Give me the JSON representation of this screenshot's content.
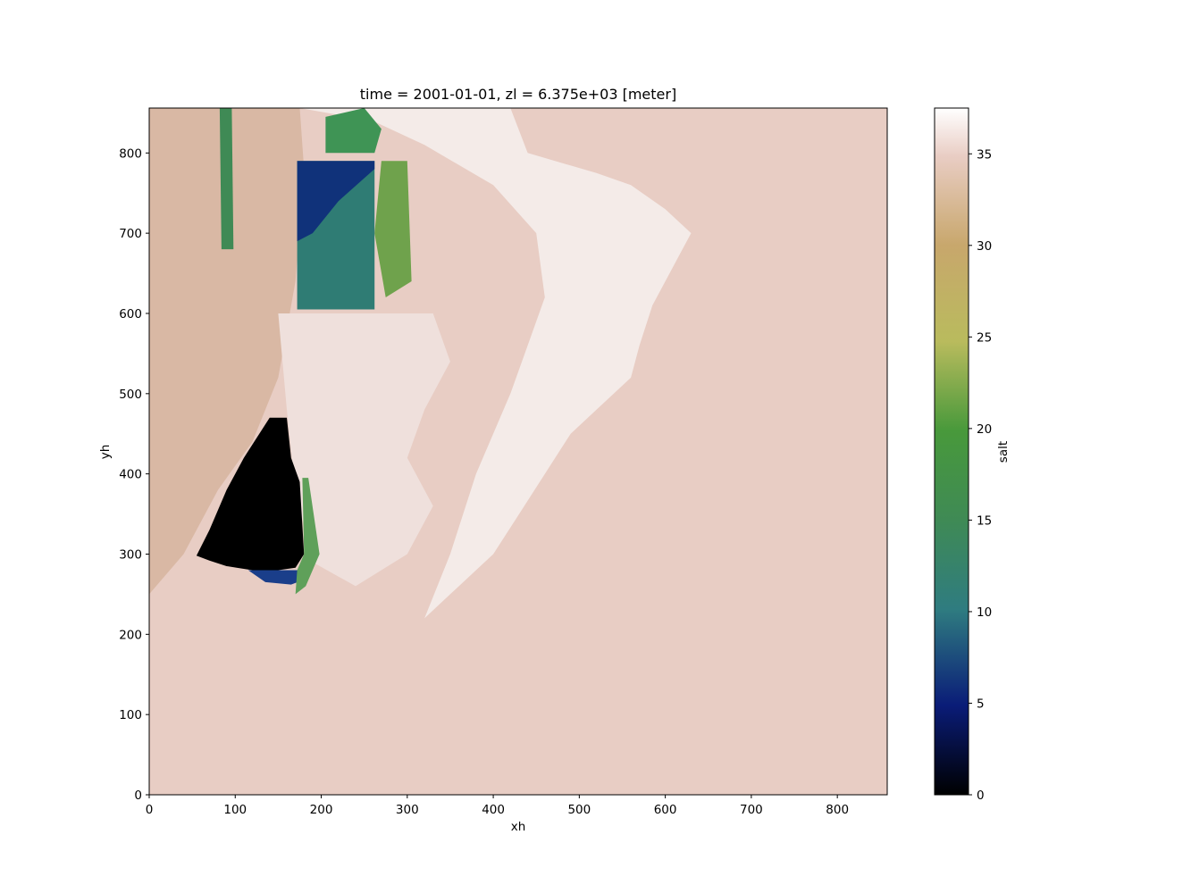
{
  "chart_data": {
    "type": "heatmap",
    "title": "time = 2001-01-01, zl = 6.375e+03 [meter]",
    "xlabel": "xh",
    "ylabel": "yh",
    "xlim": [
      0,
      858
    ],
    "ylim": [
      0,
      856
    ],
    "x_ticks": [
      0,
      100,
      200,
      300,
      400,
      500,
      600,
      700,
      800
    ],
    "y_ticks": [
      0,
      100,
      200,
      300,
      400,
      500,
      600,
      700,
      800
    ],
    "colorbar": {
      "label": "salt",
      "colormap": "gist_earth",
      "vmin": 0,
      "vmax": 37.5,
      "ticks": [
        0,
        5,
        10,
        15,
        20,
        25,
        30,
        35
      ]
    },
    "background_value": 34,
    "background_color": "#e8cdc4",
    "regions": [
      {
        "name": "coastal-fresh-zone",
        "value": 37,
        "color": "#f4ebe8",
        "polygon": [
          [
            175,
            856
          ],
          [
            420,
            856
          ],
          [
            440,
            800
          ],
          [
            520,
            775
          ],
          [
            560,
            760
          ],
          [
            600,
            730
          ],
          [
            630,
            700
          ],
          [
            610,
            660
          ],
          [
            585,
            610
          ],
          [
            570,
            560
          ],
          [
            560,
            520
          ],
          [
            520,
            480
          ],
          [
            490,
            450
          ],
          [
            460,
            400
          ],
          [
            430,
            350
          ],
          [
            400,
            300
          ],
          [
            350,
            250
          ],
          [
            320,
            220
          ],
          [
            350,
            300
          ],
          [
            380,
            400
          ],
          [
            420,
            500
          ],
          [
            440,
            560
          ],
          [
            460,
            620
          ],
          [
            450,
            700
          ],
          [
            400,
            760
          ],
          [
            320,
            810
          ],
          [
            260,
            840
          ]
        ]
      },
      {
        "name": "western-shelf",
        "value": 32,
        "color": "#d9b8a4",
        "polygon": [
          [
            0,
            856
          ],
          [
            175,
            856
          ],
          [
            180,
            780
          ],
          [
            170,
            640
          ],
          [
            150,
            520
          ],
          [
            120,
            440
          ],
          [
            80,
            380
          ],
          [
            40,
            300
          ],
          [
            0,
            250
          ]
        ]
      },
      {
        "name": "nearshore-band",
        "value": 36,
        "color": "#efe0dc",
        "polygon": [
          [
            150,
            600
          ],
          [
            330,
            600
          ],
          [
            350,
            540
          ],
          [
            320,
            480
          ],
          [
            300,
            420
          ],
          [
            330,
            360
          ],
          [
            300,
            300
          ],
          [
            240,
            260
          ],
          [
            190,
            290
          ],
          [
            170,
            380
          ],
          [
            160,
            480
          ]
        ]
      },
      {
        "name": "inlet-green-upper",
        "value": 19,
        "color": "#6fa24c",
        "polygon": [
          [
            270,
            790
          ],
          [
            300,
            790
          ],
          [
            305,
            640
          ],
          [
            275,
            620
          ],
          [
            262,
            700
          ]
        ]
      },
      {
        "name": "inlet-green-band",
        "value": 17,
        "color": "#3f8a55",
        "polygon": [
          [
            82,
            856
          ],
          [
            96,
            856
          ],
          [
            98,
            680
          ],
          [
            84,
            680
          ]
        ]
      },
      {
        "name": "inlet-teal-block",
        "value": 11,
        "color": "#2f7c74",
        "polygon": [
          [
            172,
            790
          ],
          [
            262,
            790
          ],
          [
            262,
            605
          ],
          [
            172,
            605
          ]
        ]
      },
      {
        "name": "inlet-deep-blue",
        "value": 4,
        "color": "#10327a",
        "polygon": [
          [
            172,
            790
          ],
          [
            262,
            790
          ],
          [
            262,
            780
          ],
          [
            220,
            740
          ],
          [
            190,
            700
          ],
          [
            172,
            690
          ]
        ]
      },
      {
        "name": "inlet-green-top",
        "value": 17,
        "color": "#3f9455",
        "polygon": [
          [
            205,
            845
          ],
          [
            250,
            856
          ],
          [
            270,
            830
          ],
          [
            262,
            800
          ],
          [
            205,
            800
          ]
        ]
      },
      {
        "name": "lagoon-fresh",
        "value": 0,
        "color": "#000000",
        "polygon": [
          [
            55,
            298
          ],
          [
            70,
            330
          ],
          [
            90,
            380
          ],
          [
            110,
            420
          ],
          [
            140,
            470
          ],
          [
            160,
            470
          ],
          [
            165,
            420
          ],
          [
            175,
            390
          ],
          [
            180,
            300
          ],
          [
            170,
            283
          ],
          [
            150,
            280
          ],
          [
            120,
            280
          ],
          [
            90,
            285
          ],
          [
            70,
            292
          ]
        ]
      },
      {
        "name": "lagoon-edge-blue",
        "value": 6,
        "color": "#1a3e8a",
        "polygon": [
          [
            115,
            280
          ],
          [
            175,
            280
          ],
          [
            185,
            270
          ],
          [
            165,
            262
          ],
          [
            135,
            265
          ]
        ]
      },
      {
        "name": "lagoon-edge-green",
        "value": 16,
        "color": "#5fa05a",
        "polygon": [
          [
            178,
            395
          ],
          [
            185,
            395
          ],
          [
            198,
            300
          ],
          [
            182,
            260
          ],
          [
            170,
            250
          ],
          [
            172,
            280
          ],
          [
            180,
            300
          ]
        ]
      }
    ]
  }
}
